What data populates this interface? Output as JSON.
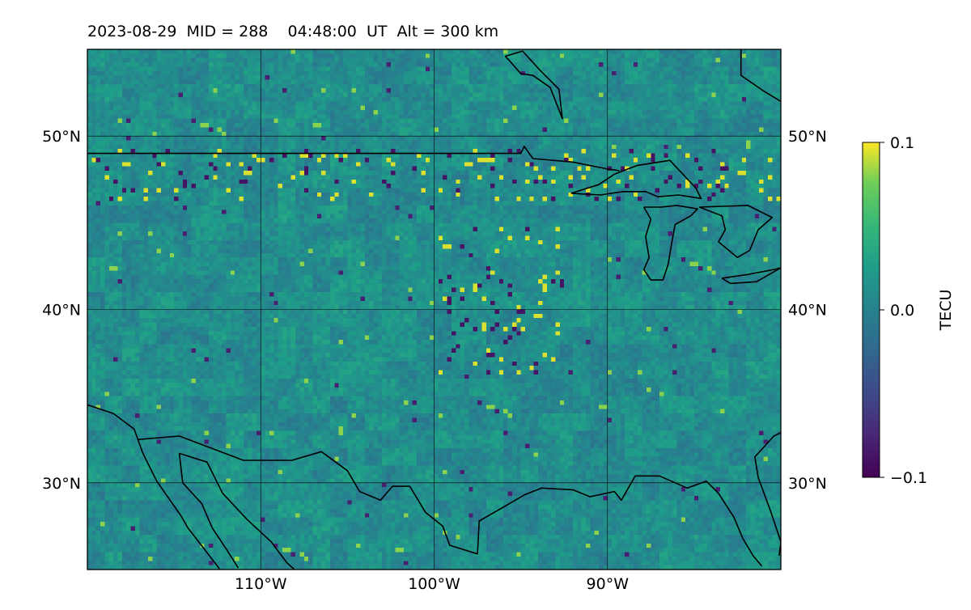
{
  "title": "2023-08-29  MID = 288    04:48:00  UT  Alt = 300 km",
  "map": {
    "lon_range": [
      -120,
      -80
    ],
    "lat_range": [
      25,
      55
    ],
    "grid": true,
    "lon_ticks": [
      {
        "value": -110,
        "label": "110°W"
      },
      {
        "value": -100,
        "label": "100°W"
      },
      {
        "value": -90,
        "label": "90°W"
      }
    ],
    "lat_ticks": [
      {
        "value": 50,
        "label": "50°N"
      },
      {
        "value": 40,
        "label": "40°N"
      },
      {
        "value": 30,
        "label": "30°N"
      }
    ]
  },
  "colorbar": {
    "label": "TECU",
    "colormap": "viridis",
    "min": -0.1,
    "max": 0.1,
    "ticks": [
      {
        "value": 0.1,
        "label": "0.1"
      },
      {
        "value": 0.0,
        "label": "0.0"
      },
      {
        "value": -0.1,
        "label": "−0.1"
      }
    ]
  },
  "colors": {
    "low": "#440154",
    "mid": "#21918c",
    "high": "#fde725",
    "coastline": "#000000",
    "gridline": "#000000"
  },
  "coastlines": [
    {
      "name": "us-canada-border",
      "points": [
        [
          -120,
          49
        ],
        [
          -115,
          49
        ],
        [
          -110,
          49
        ],
        [
          -105,
          49
        ],
        [
          -100,
          49
        ],
        [
          -95,
          49
        ],
        [
          -94.8,
          49.4
        ],
        [
          -94.3,
          48.7
        ],
        [
          -92,
          48.5
        ],
        [
          -90,
          48.1
        ],
        [
          -89.3,
          48
        ]
      ]
    },
    {
      "name": "lake-superior",
      "points": [
        [
          -92.1,
          46.7
        ],
        [
          -90.5,
          47.2
        ],
        [
          -89.6,
          47.8
        ],
        [
          -88.3,
          48.3
        ],
        [
          -86.4,
          48.6
        ],
        [
          -84.9,
          47
        ],
        [
          -84.6,
          46.4
        ],
        [
          -85.9,
          46.6
        ],
        [
          -87.1,
          46.5
        ],
        [
          -87.8,
          46.8
        ],
        [
          -89.1,
          46.8
        ],
        [
          -90.4,
          46.6
        ],
        [
          -92.1,
          46.7
        ]
      ]
    },
    {
      "name": "lake-michigan",
      "points": [
        [
          -87.9,
          45.9
        ],
        [
          -87.5,
          45.2
        ],
        [
          -87.8,
          44.2
        ],
        [
          -87.6,
          43
        ],
        [
          -87.9,
          42.3
        ],
        [
          -87.5,
          41.7
        ],
        [
          -86.8,
          41.7
        ],
        [
          -86.5,
          42.6
        ],
        [
          -86.3,
          43.8
        ],
        [
          -86.1,
          44.9
        ],
        [
          -85.2,
          45.4
        ],
        [
          -84.8,
          45.8
        ],
        [
          -86,
          46
        ],
        [
          -86.9,
          45.9
        ],
        [
          -87.9,
          45.9
        ]
      ]
    },
    {
      "name": "lake-huron",
      "points": [
        [
          -84.7,
          45.9
        ],
        [
          -83.4,
          45.4
        ],
        [
          -83.2,
          44.6
        ],
        [
          -83.6,
          43.9
        ],
        [
          -82.5,
          43
        ],
        [
          -81.8,
          43.4
        ],
        [
          -81.3,
          44.6
        ],
        [
          -80.5,
          45.3
        ],
        [
          -81.9,
          46
        ],
        [
          -84.7,
          45.9
        ]
      ]
    },
    {
      "name": "lake-erie",
      "points": [
        [
          -83.4,
          41.8
        ],
        [
          -82,
          42
        ],
        [
          -80.4,
          42.3
        ],
        [
          -80,
          42.4
        ],
        [
          -81.4,
          41.6
        ],
        [
          -82.9,
          41.5
        ],
        [
          -83.4,
          41.8
        ]
      ]
    },
    {
      "name": "hudson-bay-coast",
      "points": [
        [
          -82.3,
          55
        ],
        [
          -82.3,
          53.5
        ],
        [
          -81,
          52.6
        ],
        [
          -80,
          52
        ]
      ]
    },
    {
      "name": "southampton-island",
      "points": [
        [
          -95.9,
          54.6
        ],
        [
          -94.9,
          54.9
        ],
        [
          -93.9,
          53.8
        ],
        [
          -92.8,
          52.7
        ],
        [
          -92.6,
          51
        ],
        [
          -93.3,
          52.8
        ],
        [
          -94.3,
          53.5
        ],
        [
          -95,
          53.6
        ],
        [
          -95.7,
          54.4
        ],
        [
          -95.9,
          54.6
        ]
      ]
    },
    {
      "name": "mexico-us-border",
      "points": [
        [
          -117.1,
          32.5
        ],
        [
          -114.7,
          32.7
        ],
        [
          -111,
          31.3
        ],
        [
          -108.2,
          31.3
        ],
        [
          -106.5,
          31.8
        ],
        [
          -105,
          30.7
        ],
        [
          -104.3,
          29.5
        ],
        [
          -103.1,
          29
        ],
        [
          -102.4,
          29.8
        ],
        [
          -101.4,
          29.8
        ],
        [
          -100.5,
          28.3
        ],
        [
          -99.5,
          27.5
        ],
        [
          -99.1,
          26.4
        ],
        [
          -97.5,
          25.9
        ]
      ]
    },
    {
      "name": "gulf-coast",
      "points": [
        [
          -97.5,
          25.9
        ],
        [
          -97.4,
          27.8
        ],
        [
          -96,
          28.6
        ],
        [
          -94.8,
          29.3
        ],
        [
          -93.8,
          29.7
        ],
        [
          -92,
          29.6
        ],
        [
          -91,
          29.2
        ],
        [
          -89.6,
          29.5
        ],
        [
          -89.2,
          29
        ],
        [
          -88.4,
          30.4
        ],
        [
          -87,
          30.4
        ],
        [
          -85.4,
          29.7
        ],
        [
          -84.3,
          30.1
        ],
        [
          -83.6,
          29.4
        ],
        [
          -82.7,
          28
        ],
        [
          -82.2,
          26.8
        ],
        [
          -81.6,
          25.8
        ],
        [
          -81.1,
          25.2
        ]
      ]
    },
    {
      "name": "florida-atlantic-coast",
      "points": [
        [
          -80.1,
          25.8
        ],
        [
          -80,
          26.6
        ],
        [
          -80.6,
          28.4
        ],
        [
          -81.3,
          30.3
        ],
        [
          -81.5,
          31.5
        ],
        [
          -80.4,
          32.7
        ],
        [
          -79.2,
          33.3
        ]
      ]
    },
    {
      "name": "baja-california-west",
      "points": [
        [
          -120,
          34.5
        ],
        [
          -118.5,
          34
        ],
        [
          -117.3,
          33.1
        ],
        [
          -116.8,
          31.7
        ],
        [
          -116,
          30.1
        ],
        [
          -114.6,
          28.1
        ],
        [
          -114.2,
          27.4
        ],
        [
          -112.5,
          25.2
        ],
        [
          -112,
          24.5
        ]
      ]
    },
    {
      "name": "gulf-of-california-east",
      "points": [
        [
          -114.7,
          31.7
        ],
        [
          -113.1,
          31.2
        ],
        [
          -112.2,
          29.4
        ],
        [
          -110.8,
          27.9
        ],
        [
          -109.4,
          26.6
        ],
        [
          -108.5,
          25.4
        ],
        [
          -107.5,
          24.5
        ]
      ]
    },
    {
      "name": "baja-peninsula-east",
      "points": [
        [
          -114.7,
          31.7
        ],
        [
          -114.5,
          30
        ],
        [
          -113.4,
          28.8
        ],
        [
          -112.8,
          27.4
        ],
        [
          -112,
          26.2
        ],
        [
          -111.3,
          25.1
        ]
      ]
    }
  ]
}
